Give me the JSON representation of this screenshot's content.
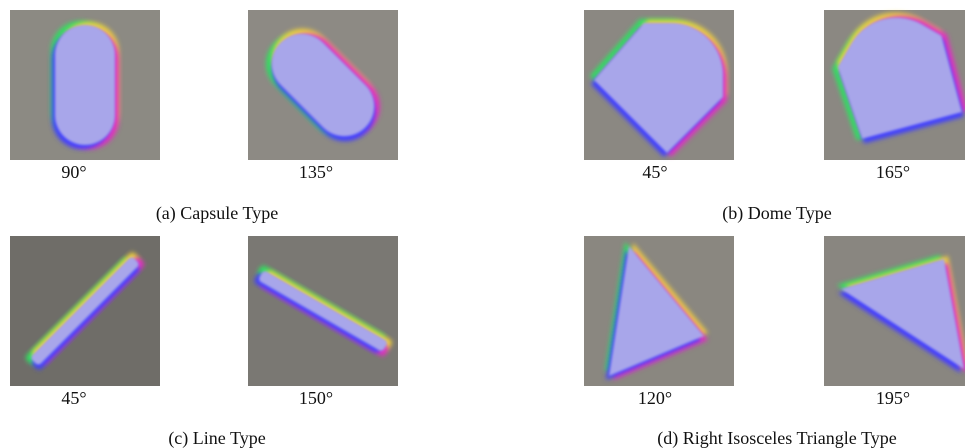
{
  "panels": [
    {
      "caption": "(a) Capsule Type",
      "images": [
        {
          "angle": "90°"
        },
        {
          "angle": "135°"
        }
      ]
    },
    {
      "caption": "(b) Dome Type",
      "images": [
        {
          "angle": "45°"
        },
        {
          "angle": "165°"
        }
      ]
    },
    {
      "caption": "(c) Line Type",
      "images": [
        {
          "angle": "45°"
        },
        {
          "angle": "150°"
        }
      ]
    },
    {
      "caption": "(d) Right Isosceles Triangle Type",
      "images": [
        {
          "angle": "120°"
        },
        {
          "angle": "195°"
        }
      ]
    }
  ]
}
